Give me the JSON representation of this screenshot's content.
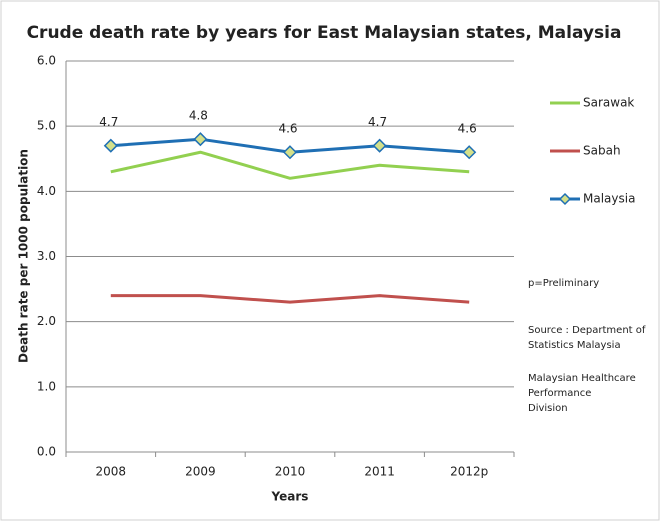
{
  "chart_data": {
    "type": "line",
    "title": "Crude death rate by years for East Malaysian states, Malaysia",
    "x_label": "Years",
    "y_label": "Death rate per 1000 population",
    "categories": [
      "2008",
      "2009",
      "2010",
      "2011",
      "2012p"
    ],
    "series": [
      {
        "name": "Sarawak",
        "color": "#92d050",
        "values": [
          4.3,
          4.6,
          4.2,
          4.4,
          4.3
        ]
      },
      {
        "name": "Sabah",
        "color": "#c0504d",
        "values": [
          2.4,
          2.4,
          2.3,
          2.4,
          2.3
        ]
      },
      {
        "name": "Malaysia",
        "color": "#1f6fb4",
        "marker_color": "#d4e08a",
        "values": [
          4.7,
          4.8,
          4.6,
          4.7,
          4.6
        ],
        "show_labels": true
      }
    ],
    "ylim": [
      0,
      6
    ],
    "yticks": [
      {
        "value": 0,
        "label": "0.0"
      },
      {
        "value": 1,
        "label": "1.0"
      },
      {
        "value": 2,
        "label": "2.0"
      },
      {
        "value": 3,
        "label": "3.0"
      },
      {
        "value": 4,
        "label": "4.0"
      },
      {
        "value": 5,
        "label": "5.0"
      },
      {
        "value": 6,
        "label": "6.0"
      }
    ],
    "grid": true,
    "legend": "right",
    "annotations": [
      [
        "p=Preliminary"
      ],
      [
        "Source : Department of",
        "Statistics Malaysia"
      ],
      [
        "Malaysian Healthcare",
        "Performance",
        "Division"
      ]
    ]
  }
}
